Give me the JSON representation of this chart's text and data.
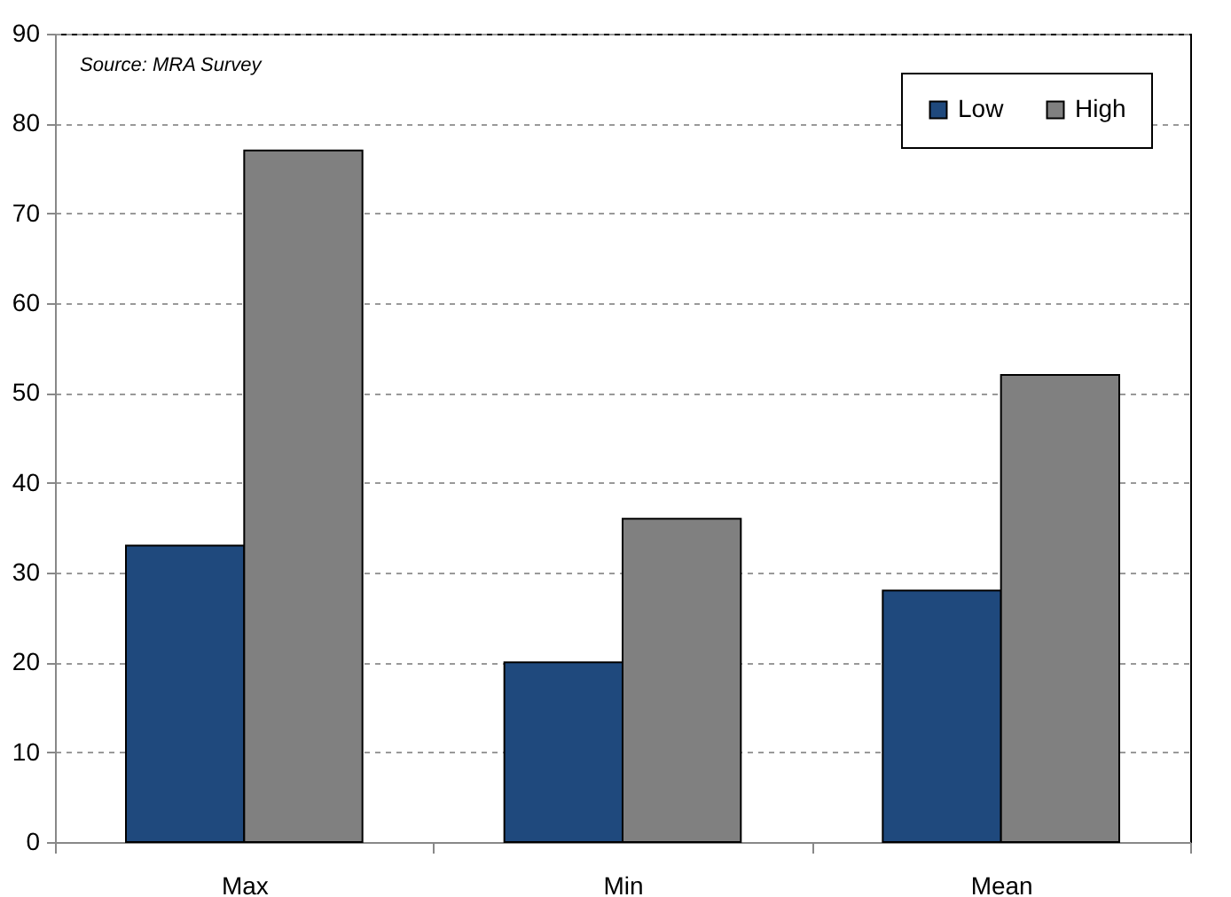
{
  "chart_data": {
    "type": "bar",
    "categories": [
      "Max",
      "Min",
      "Mean"
    ],
    "series": [
      {
        "name": "Low",
        "color": "#1f497d",
        "values": [
          33,
          20,
          28
        ]
      },
      {
        "name": "High",
        "color": "#808080",
        "values": [
          77,
          36,
          52
        ]
      }
    ],
    "ylim": [
      0,
      90
    ],
    "yticks": [
      0,
      10,
      20,
      30,
      40,
      50,
      60,
      70,
      80,
      90
    ],
    "grid": "y",
    "legend": "top right",
    "annotations": [
      "Source: MRA Survey"
    ]
  }
}
